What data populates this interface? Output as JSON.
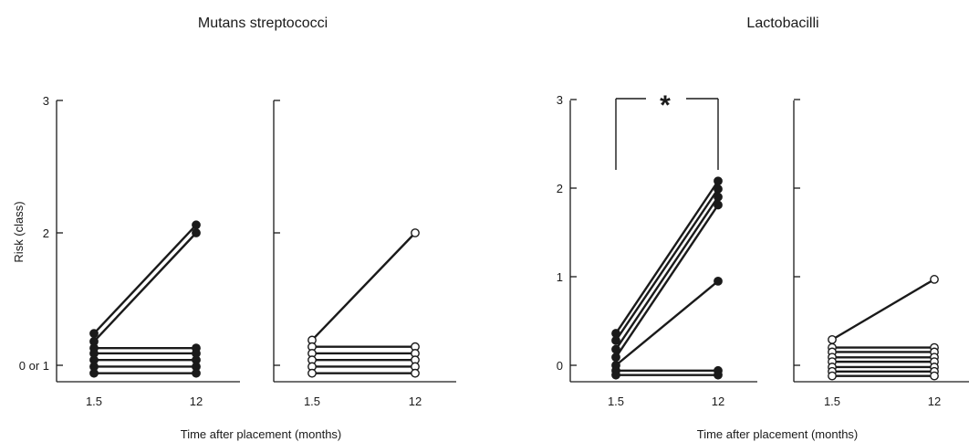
{
  "chart_data": {
    "type": "line",
    "groups": [
      {
        "title": "Mutans streptococci",
        "xlabel": "Time after placement (months)",
        "ylabel": "Risk (class)",
        "yticks": [
          "0 or 1",
          "2",
          "3"
        ],
        "panels": [
          {
            "marker": "filled",
            "x": [
              "1.5",
              "12"
            ],
            "ylim": [
              0.85,
              3
            ],
            "pairs": [
              [
                1.24,
                2.06
              ],
              [
                1.18,
                2.0
              ],
              [
                1.13,
                1.13
              ],
              [
                1.09,
                1.09
              ],
              [
                1.04,
                1.04
              ],
              [
                0.99,
                0.99
              ],
              [
                0.94,
                0.94
              ]
            ]
          },
          {
            "marker": "open",
            "x": [
              "1.5",
              "12"
            ],
            "ylim": [
              0.85,
              3
            ],
            "pairs": [
              [
                1.19,
                2.0
              ],
              [
                1.14,
                1.14
              ],
              [
                1.09,
                1.09
              ],
              [
                1.04,
                1.04
              ],
              [
                0.99,
                0.99
              ],
              [
                0.94,
                0.94
              ]
            ]
          }
        ]
      },
      {
        "title": "Lactobacilli",
        "xlabel": "Time after placement (months)",
        "ylabel": "",
        "yticks": [
          "0",
          "1",
          "2",
          "3"
        ],
        "annotation": "*",
        "panels": [
          {
            "marker": "filled",
            "x": [
              "1.5",
              "12"
            ],
            "ylim": [
              -0.15,
              3
            ],
            "pairs": [
              [
                0.36,
                2.08
              ],
              [
                0.28,
                1.99
              ],
              [
                0.18,
                1.9
              ],
              [
                0.09,
                1.81
              ],
              [
                0.0,
                0.95
              ],
              [
                -0.06,
                -0.06
              ],
              [
                -0.11,
                -0.11
              ]
            ]
          },
          {
            "marker": "open",
            "x": [
              "1.5",
              "12"
            ],
            "ylim": [
              -0.15,
              3
            ],
            "pairs": [
              [
                0.29,
                0.97
              ],
              [
                0.2,
                0.2
              ],
              [
                0.15,
                0.15
              ],
              [
                0.09,
                0.09
              ],
              [
                0.04,
                0.04
              ],
              [
                -0.02,
                -0.02
              ],
              [
                -0.07,
                -0.07
              ],
              [
                -0.12,
                -0.12
              ]
            ]
          }
        ]
      }
    ]
  }
}
